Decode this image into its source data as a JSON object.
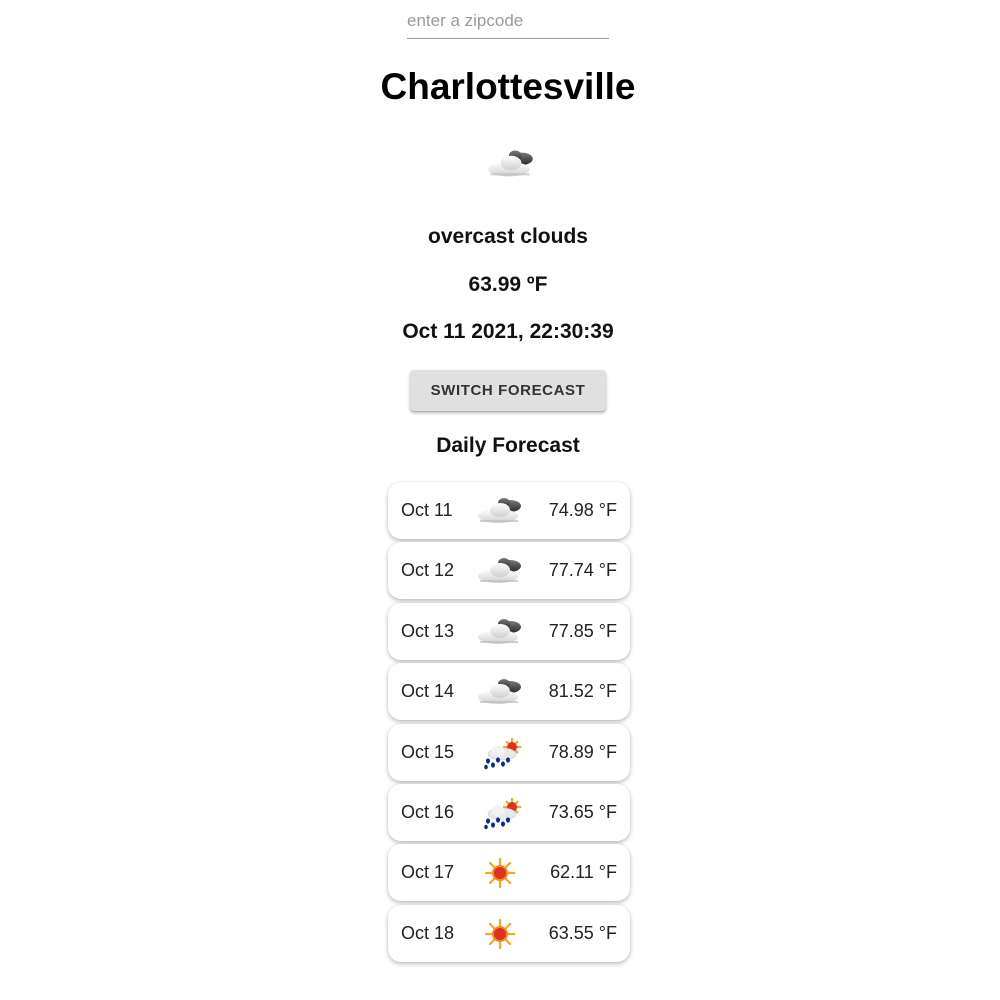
{
  "search": {
    "placeholder": "enter a zipcode",
    "value": ""
  },
  "current": {
    "city": "Charlottesville",
    "icon": "overcast-clouds-icon",
    "description": "overcast clouds",
    "temperature": "63.99 ºF",
    "datetime": "Oct 11 2021, 22:30:39"
  },
  "switch_button": {
    "label": "SWITCH FORECAST"
  },
  "forecast": {
    "title": "Daily Forecast",
    "days": [
      {
        "date": "Oct 11",
        "icon": "overcast-clouds-icon",
        "temp": "74.98 °F"
      },
      {
        "date": "Oct 12",
        "icon": "overcast-clouds-icon",
        "temp": "77.74 °F"
      },
      {
        "date": "Oct 13",
        "icon": "overcast-clouds-icon",
        "temp": "77.85 °F"
      },
      {
        "date": "Oct 14",
        "icon": "overcast-clouds-icon",
        "temp": "81.52 °F"
      },
      {
        "date": "Oct 15",
        "icon": "rain-sun-icon",
        "temp": "78.89 °F"
      },
      {
        "date": "Oct 16",
        "icon": "rain-sun-icon",
        "temp": "73.65 °F"
      },
      {
        "date": "Oct 17",
        "icon": "sun-icon",
        "temp": "62.11 °F"
      },
      {
        "date": "Oct 18",
        "icon": "sun-icon",
        "temp": "63.55 °F"
      }
    ]
  },
  "colors": {
    "button_bg": "#e0e0e0",
    "sun": "#f5a623",
    "sun_core": "#e0301e",
    "rain": "#0a2a9c",
    "cloud_dark": "#3a3a3a",
    "cloud_light": "#e6e6e6"
  }
}
